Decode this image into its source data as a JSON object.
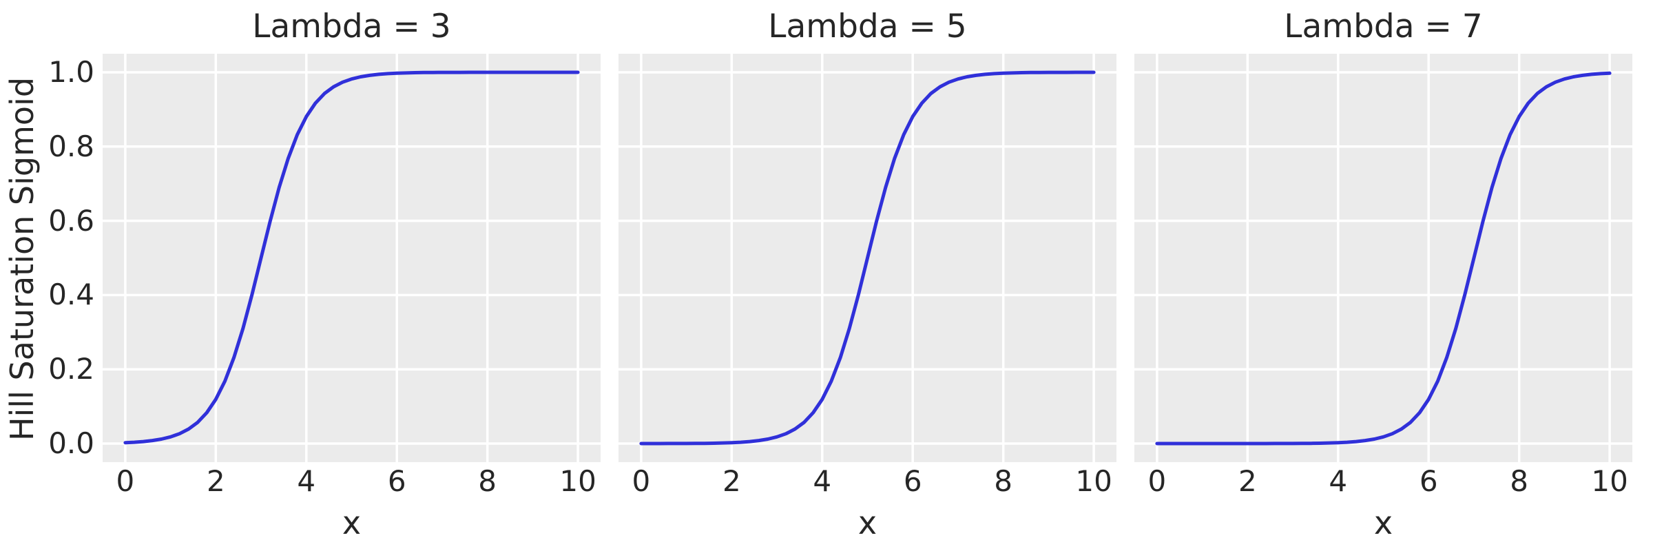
{
  "figure": {
    "background": "#ffffff",
    "axes_background": "#ebebeb",
    "grid_color": "#ffffff",
    "text_color": "#262626",
    "line_color": "#3030d9"
  },
  "chart_data": {
    "type": "line",
    "xlabel": "x",
    "ylabel": "Hill Saturation Sigmoid",
    "grid": true,
    "legend": false,
    "xlim": [
      -0.5,
      10.5
    ],
    "ylim": [
      -0.05,
      1.05
    ],
    "xticks": [
      0,
      2,
      4,
      6,
      8,
      10
    ],
    "xtick_labels": [
      "0",
      "2",
      "4",
      "6",
      "8",
      "10"
    ],
    "yticks": [
      0.0,
      0.2,
      0.4,
      0.6,
      0.8,
      1.0
    ],
    "ytick_labels": [
      "0.0",
      "0.2",
      "0.4",
      "0.6",
      "0.8",
      "1.0"
    ],
    "panels": [
      {
        "title": "Lambda = 3",
        "lambda": 3
      },
      {
        "title": "Lambda = 5",
        "lambda": 5
      },
      {
        "title": "Lambda = 7",
        "lambda": 7
      }
    ],
    "x": [
      0,
      0.2,
      0.4,
      0.6,
      0.8,
      1,
      1.2,
      1.4,
      1.6,
      1.8,
      2,
      2.2,
      2.4,
      2.6,
      2.8,
      3,
      3.2,
      3.4,
      3.6,
      3.8,
      4,
      4.2,
      4.4,
      4.6,
      4.8,
      5,
      5.2,
      5.4,
      5.6,
      5.8,
      6,
      6.2,
      6.4,
      6.6,
      6.8,
      7,
      7.2,
      7.4,
      7.6,
      7.8,
      8,
      8.2,
      8.4,
      8.6,
      8.8,
      9,
      9.2,
      9.4,
      9.6,
      9.8,
      10
    ],
    "series": [
      {
        "name": "Lambda = 3",
        "values": [
          0.0025,
          0.0037,
          0.0055,
          0.0082,
          0.0121,
          0.018,
          0.0266,
          0.0392,
          0.0573,
          0.0832,
          0.1192,
          0.168,
          0.2315,
          0.31,
          0.4013,
          0.5,
          0.5987,
          0.69,
          0.7685,
          0.832,
          0.8808,
          0.9168,
          0.9427,
          0.9608,
          0.9734,
          0.982,
          0.9879,
          0.9918,
          0.9945,
          0.9963,
          0.9975,
          0.9983,
          0.9989,
          0.9993,
          0.9995,
          0.9997,
          0.9998,
          0.9998,
          0.9999,
          0.9999,
          1,
          1,
          1,
          1,
          1,
          1,
          1,
          1,
          1,
          1,
          1
        ]
      },
      {
        "name": "Lambda = 5",
        "values": [
          0,
          0.0001,
          0.0001,
          0.0002,
          0.0002,
          0.0003,
          0.0005,
          0.0007,
          0.0011,
          0.0017,
          0.0025,
          0.0037,
          0.0055,
          0.0082,
          0.0121,
          0.018,
          0.0266,
          0.0392,
          0.0573,
          0.0832,
          0.1192,
          0.168,
          0.2315,
          0.31,
          0.4013,
          0.5,
          0.5987,
          0.69,
          0.7685,
          0.832,
          0.8808,
          0.9168,
          0.9427,
          0.9608,
          0.9734,
          0.982,
          0.9879,
          0.9918,
          0.9945,
          0.9963,
          0.9975,
          0.9983,
          0.9989,
          0.9993,
          0.9995,
          0.9997,
          0.9998,
          0.9998,
          0.9999,
          0.9999,
          1
        ]
      },
      {
        "name": "Lambda = 7",
        "values": [
          0,
          0,
          0,
          0,
          0,
          0,
          0,
          0,
          0,
          0,
          0,
          0.0001,
          0.0001,
          0.0002,
          0.0002,
          0.0003,
          0.0005,
          0.0007,
          0.0011,
          0.0017,
          0.0025,
          0.0037,
          0.0055,
          0.0082,
          0.0121,
          0.018,
          0.0266,
          0.0392,
          0.0573,
          0.0832,
          0.1192,
          0.168,
          0.2315,
          0.31,
          0.4013,
          0.5,
          0.5987,
          0.69,
          0.7685,
          0.832,
          0.8808,
          0.9168,
          0.9427,
          0.9608,
          0.9734,
          0.982,
          0.9879,
          0.9918,
          0.9945,
          0.9963,
          0.9975
        ]
      }
    ]
  }
}
